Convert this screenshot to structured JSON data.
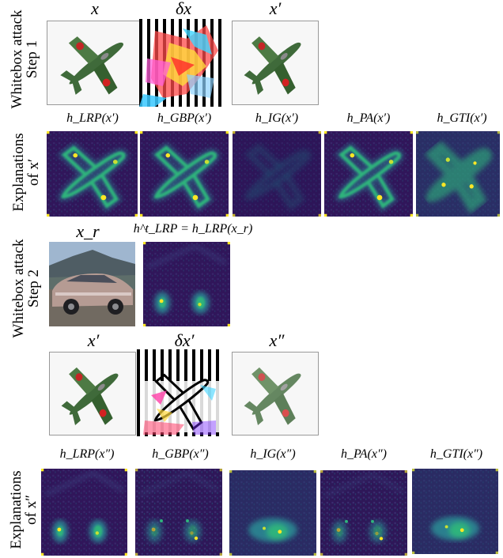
{
  "rows": [
    {
      "name": "whitebox-step-1",
      "side_label": [
        "Whitebox attack",
        "Step 1"
      ],
      "labels": [
        "x",
        "δx",
        "x′"
      ]
    },
    {
      "name": "explanations-x-prime",
      "side_label": [
        "Explanations",
        "of  x′"
      ],
      "labels": [
        "h_LRP(x′)",
        "h_GBP(x′)",
        "h_IG(x′)",
        "h_PA(x′)",
        "h_GTI(x′)"
      ]
    },
    {
      "name": "whitebox-step-2",
      "side_label": [
        "Whitebox attack",
        "Step 2"
      ],
      "labels": [
        "x_r",
        "h^t_LRP = h_LRP(x_r)",
        "x′",
        "δx′",
        "x″"
      ]
    },
    {
      "name": "explanations-x-double-prime",
      "side_label": [
        "Explanations",
        "of  x″"
      ],
      "labels": [
        "h_LRP(x″)",
        "h_GBP(x″)",
        "h_IG(x″)",
        "h_PA(x″)",
        "h_GTI(x″)"
      ]
    }
  ],
  "colors": {
    "heatmap_bg": "#35125e",
    "heatmap_mid": "#2a7f8e",
    "heatmap_high": "#2fb47c",
    "heatmap_peak": "#fde725",
    "plane_green": "#3f6a3a",
    "roundel_red": "#d22222"
  }
}
